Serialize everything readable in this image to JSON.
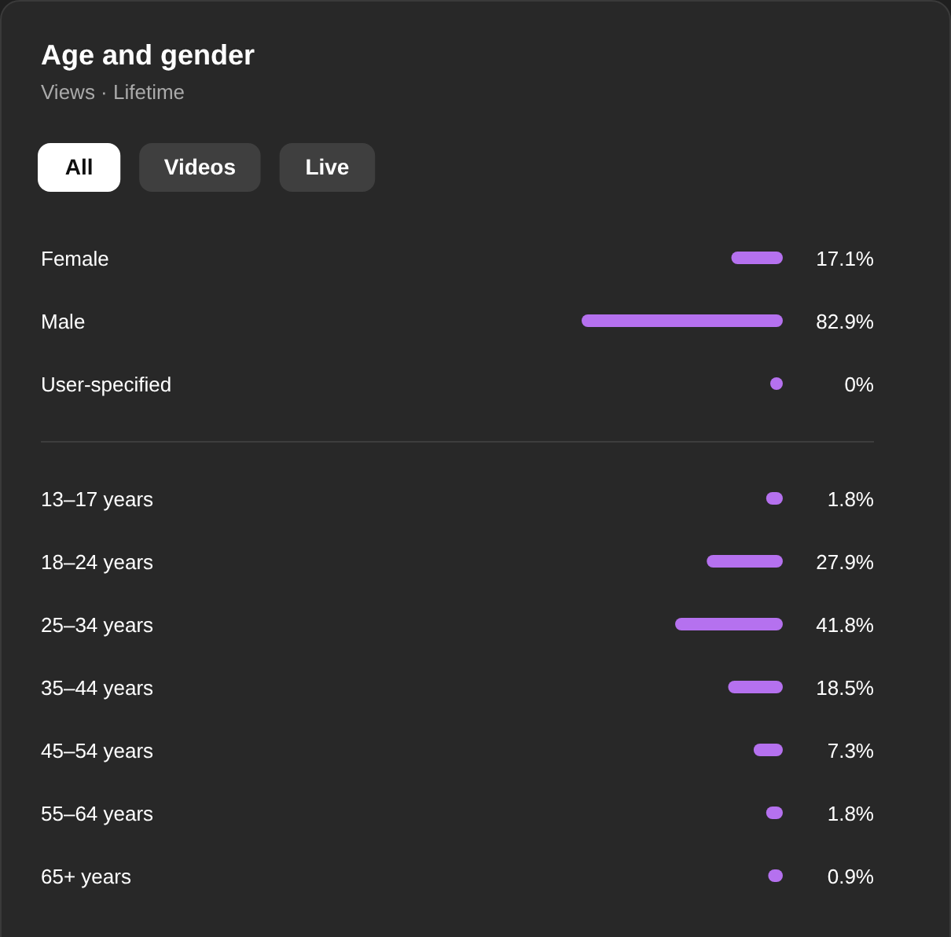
{
  "chart_data": [
    {
      "type": "bar",
      "orientation": "horizontal",
      "title": "Age and gender",
      "subtitle": "Views · Lifetime",
      "annotations": [
        "All",
        "Videos",
        "Live"
      ],
      "categories": [
        "Female",
        "Male",
        "User-specified"
      ],
      "values": [
        17.1,
        82.9,
        0
      ],
      "value_labels": [
        "17.1%",
        "82.9%",
        "0%"
      ],
      "color": "#b571ef"
    },
    {
      "type": "bar",
      "orientation": "horizontal",
      "categories": [
        "13–17 years",
        "18–24 years",
        "25–34 years",
        "35–44 years",
        "45–54 years",
        "55–64 years",
        "65+ years"
      ],
      "values": [
        1.8,
        27.9,
        41.8,
        18.5,
        7.3,
        1.8,
        0.9
      ],
      "value_labels": [
        "1.8%",
        "27.9%",
        "41.8%",
        "18.5%",
        "7.3%",
        "1.8%",
        "0.9%"
      ],
      "color": "#b571ef"
    }
  ]
}
